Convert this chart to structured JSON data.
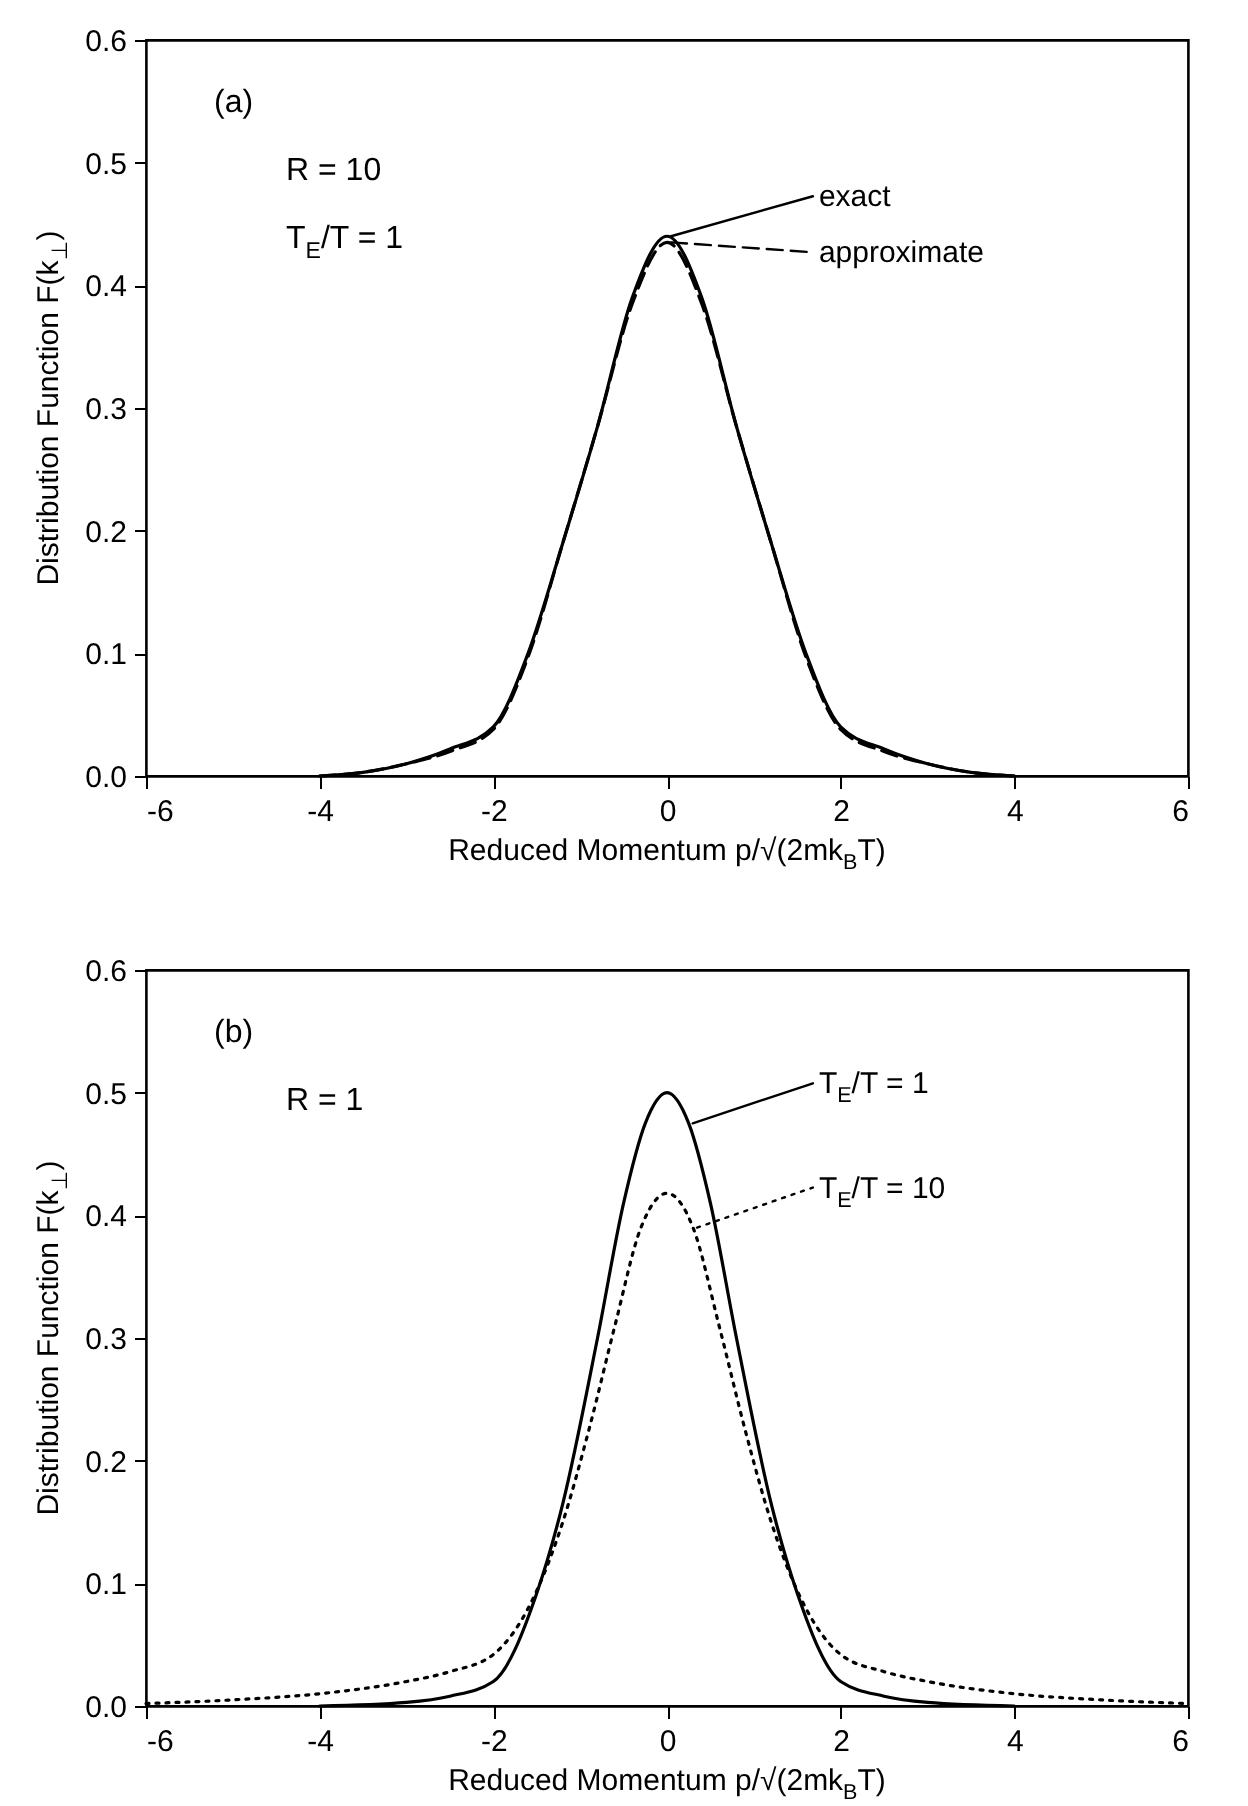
{
  "chart_data": [
    {
      "type": "line",
      "xlabel": "Reduced Momentum p/√(2mk$_{B}$T)",
      "ylabel": "Distribution Function    F(k$_{⊥}$)",
      "annotations": [
        "(a)",
        "R = 10",
        "T$_{E}$/T = 1"
      ],
      "xlim": [
        -6,
        6
      ],
      "xticks": [
        -6,
        -4,
        -2,
        0,
        2,
        4,
        6
      ],
      "ylim": [
        0,
        0.6
      ],
      "yticks": [
        {
          "value": 0,
          "label": "0.0"
        },
        {
          "value": 0.1,
          "label": "0.1"
        },
        {
          "value": 0.2,
          "label": "0.2"
        },
        {
          "value": 0.3,
          "label": "0.3"
        },
        {
          "value": 0.4,
          "label": "0.4"
        },
        {
          "value": 0.5,
          "label": "0.5"
        },
        {
          "value": 0.6,
          "label": "0.6"
        }
      ],
      "grid": false,
      "legend": "top right",
      "x": [
        -4,
        -3.5,
        -3,
        -2.5,
        -2,
        -1.6,
        -1.2,
        -0.8,
        -0.4,
        0,
        0.4,
        0.8,
        1.2,
        1.6,
        2,
        2.5,
        3,
        3.5,
        4
      ],
      "series": [
        {
          "name": "exact",
          "color": "#000000",
          "line_style": "solid",
          "values": [
            0,
            0.003,
            0.01,
            0.022,
            0.04,
            0.1,
            0.19,
            0.285,
            0.39,
            0.44,
            0.39,
            0.285,
            0.19,
            0.1,
            0.04,
            0.022,
            0.01,
            0.003,
            0
          ]
        },
        {
          "name": "approximate",
          "color": "#000000",
          "line_style": "dashed",
          "values": [
            0,
            0.003,
            0.01,
            0.02,
            0.038,
            0.097,
            0.19,
            0.285,
            0.385,
            0.435,
            0.385,
            0.285,
            0.19,
            0.097,
            0.038,
            0.02,
            0.01,
            0.003,
            0
          ]
        }
      ]
    },
    {
      "type": "line",
      "xlabel": "Reduced Momentum p/√(2mk$_{B}$T)",
      "ylabel": "Distribution Function    F(k$_{⊥}$)",
      "annotations": [
        "(b)",
        "R = 1"
      ],
      "xlim": [
        -6,
        6
      ],
      "xticks": [
        -6,
        -4,
        -2,
        0,
        2,
        4,
        6
      ],
      "ylim": [
        0,
        0.6
      ],
      "yticks": [
        {
          "value": 0,
          "label": "0.0"
        },
        {
          "value": 0.1,
          "label": "0.1"
        },
        {
          "value": 0.2,
          "label": "0.2"
        },
        {
          "value": 0.3,
          "label": "0.3"
        },
        {
          "value": 0.4,
          "label": "0.4"
        },
        {
          "value": 0.5,
          "label": "0.5"
        },
        {
          "value": 0.6,
          "label": "0.6"
        }
      ],
      "grid": false,
      "legend": "top right",
      "series": [
        {
          "name": "T$_{E}$/T = 1",
          "color": "#000000",
          "line_style": "solid",
          "x": [
            -4,
            -3,
            -2.5,
            -2,
            -1.5,
            -1.2,
            -0.8,
            -0.5,
            -0.25,
            0,
            0.25,
            0.5,
            0.8,
            1.2,
            1.5,
            2,
            2.5,
            3,
            4
          ],
          "values": [
            0,
            0.003,
            0.008,
            0.02,
            0.092,
            0.165,
            0.3,
            0.41,
            0.475,
            0.5,
            0.475,
            0.41,
            0.3,
            0.165,
            0.092,
            0.02,
            0.008,
            0.003,
            0
          ]
        },
        {
          "name": "T$_{E}$/T = 10",
          "color": "#000000",
          "line_style": "dotted",
          "x": [
            -6,
            -5,
            -4,
            -3,
            -2.5,
            -2,
            -1.5,
            -1.2,
            -0.9,
            -0.6,
            -0.3,
            0,
            0.3,
            0.6,
            0.9,
            1.2,
            1.5,
            2,
            2.5,
            3,
            4,
            5,
            6
          ],
          "values": [
            0.002,
            0.005,
            0.01,
            0.02,
            0.028,
            0.042,
            0.094,
            0.15,
            0.225,
            0.31,
            0.39,
            0.418,
            0.39,
            0.31,
            0.225,
            0.15,
            0.094,
            0.042,
            0.028,
            0.02,
            0.01,
            0.005,
            0.002
          ]
        }
      ]
    }
  ]
}
